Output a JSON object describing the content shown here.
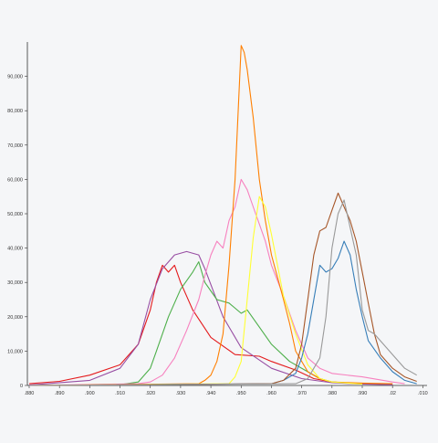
{
  "chart_data": {
    "type": "line",
    "title": "",
    "xlabel": "",
    "ylabel": "",
    "x_ticks": [
      ".880",
      ".890",
      ".900",
      ".910",
      ".920",
      ".930",
      ".940",
      ".950",
      ".960",
      ".970",
      ".980",
      ".990",
      ".02",
      ".010"
    ],
    "y_ticks": [
      "0",
      "10,000",
      "20,000",
      "30,000",
      "40,000",
      "50,000",
      "60,000",
      "70,000",
      "80,000",
      "90,000"
    ],
    "ylim": [
      0,
      100000
    ],
    "grid": false,
    "legend": "none",
    "series": [
      {
        "color": "#e41a1c",
        "points": [
          [
            0,
            500
          ],
          [
            5,
            1200
          ],
          [
            10,
            3000
          ],
          [
            15,
            6000
          ],
          [
            18,
            12000
          ],
          [
            20,
            22000
          ],
          [
            21,
            30000
          ],
          [
            22,
            35000
          ],
          [
            23,
            33000
          ],
          [
            24,
            35000
          ],
          [
            25,
            30000
          ],
          [
            27,
            22000
          ],
          [
            30,
            14000
          ],
          [
            34,
            9000
          ],
          [
            38,
            8500
          ],
          [
            40,
            7000
          ],
          [
            44,
            4500
          ],
          [
            47,
            2000
          ],
          [
            50,
            1000
          ],
          [
            55,
            500
          ],
          [
            60,
            300
          ]
        ]
      },
      {
        "color": "#984ea3",
        "points": [
          [
            0,
            100
          ],
          [
            10,
            1500
          ],
          [
            15,
            5000
          ],
          [
            18,
            12000
          ],
          [
            20,
            25000
          ],
          [
            22,
            34000
          ],
          [
            24,
            38000
          ],
          [
            26,
            39000
          ],
          [
            28,
            38000
          ],
          [
            29,
            34000
          ],
          [
            32,
            20000
          ],
          [
            35,
            11000
          ],
          [
            40,
            5000
          ],
          [
            45,
            2000
          ],
          [
            50,
            800
          ],
          [
            55,
            400
          ],
          [
            60,
            200
          ]
        ]
      },
      {
        "color": "#4daf4a",
        "points": [
          [
            0,
            0
          ],
          [
            15,
            200
          ],
          [
            18,
            1000
          ],
          [
            20,
            5000
          ],
          [
            21,
            10000
          ],
          [
            23,
            20000
          ],
          [
            25,
            28000
          ],
          [
            27,
            33000
          ],
          [
            28,
            36000
          ],
          [
            29,
            30000
          ],
          [
            31,
            25000
          ],
          [
            33,
            24000
          ],
          [
            35,
            21000
          ],
          [
            36,
            22000
          ],
          [
            38,
            17000
          ],
          [
            40,
            12000
          ],
          [
            43,
            7000
          ],
          [
            46,
            4000
          ],
          [
            48,
            2000
          ],
          [
            50,
            1000
          ],
          [
            55,
            500
          ]
        ]
      },
      {
        "color": "#f781bf",
        "points": [
          [
            0,
            0
          ],
          [
            18,
            500
          ],
          [
            20,
            1000
          ],
          [
            22,
            3000
          ],
          [
            24,
            8000
          ],
          [
            26,
            16000
          ],
          [
            28,
            25000
          ],
          [
            29,
            32000
          ],
          [
            30,
            38000
          ],
          [
            31,
            42000
          ],
          [
            32,
            40000
          ],
          [
            33,
            48000
          ],
          [
            34,
            52000
          ],
          [
            35,
            60000
          ],
          [
            36,
            57000
          ],
          [
            37,
            52000
          ],
          [
            38,
            47000
          ],
          [
            39,
            42000
          ],
          [
            40,
            35000
          ],
          [
            42,
            26000
          ],
          [
            44,
            16000
          ],
          [
            46,
            8000
          ],
          [
            48,
            5000
          ],
          [
            50,
            3500
          ],
          [
            55,
            2500
          ],
          [
            60,
            1000
          ],
          [
            62,
            500
          ]
        ]
      },
      {
        "color": "#ff7f00",
        "points": [
          [
            0,
            0
          ],
          [
            28,
            500
          ],
          [
            29,
            1500
          ],
          [
            30,
            3000
          ],
          [
            31,
            7000
          ],
          [
            32,
            15000
          ],
          [
            33,
            35000
          ],
          [
            34,
            60000
          ],
          [
            35,
            99000
          ],
          [
            35.5,
            97000
          ],
          [
            36,
            92000
          ],
          [
            37,
            78000
          ],
          [
            38,
            60000
          ],
          [
            39,
            48000
          ],
          [
            40,
            38000
          ],
          [
            42,
            25000
          ],
          [
            43,
            18000
          ],
          [
            44,
            10000
          ],
          [
            46,
            4000
          ],
          [
            48,
            2000
          ],
          [
            50,
            1000
          ],
          [
            55,
            700
          ],
          [
            60,
            500
          ]
        ]
      },
      {
        "color": "#ffff33",
        "points": [
          [
            0,
            0
          ],
          [
            33,
            500
          ],
          [
            34,
            2500
          ],
          [
            35,
            7000
          ],
          [
            36,
            25000
          ],
          [
            37,
            43000
          ],
          [
            38,
            55000
          ],
          [
            39,
            52000
          ],
          [
            40,
            44000
          ],
          [
            41,
            35000
          ],
          [
            42,
            26000
          ],
          [
            44,
            15000
          ],
          [
            46,
            6000
          ],
          [
            48,
            2000
          ],
          [
            50,
            1000
          ],
          [
            55,
            400
          ]
        ]
      },
      {
        "color": "#377eb8",
        "points": [
          [
            0,
            0
          ],
          [
            40,
            500
          ],
          [
            42,
            1500
          ],
          [
            44,
            3500
          ],
          [
            45,
            8000
          ],
          [
            46,
            15000
          ],
          [
            47,
            25000
          ],
          [
            48,
            35000
          ],
          [
            49,
            33000
          ],
          [
            50,
            34000
          ],
          [
            51,
            37000
          ],
          [
            52,
            42000
          ],
          [
            53,
            38000
          ],
          [
            54,
            28000
          ],
          [
            55,
            20000
          ],
          [
            56,
            13000
          ],
          [
            58,
            8000
          ],
          [
            60,
            4000
          ],
          [
            62,
            1500
          ],
          [
            64,
            500
          ]
        ]
      },
      {
        "color": "#a65628",
        "points": [
          [
            0,
            0
          ],
          [
            40,
            500
          ],
          [
            42,
            1500
          ],
          [
            44,
            5000
          ],
          [
            45,
            12000
          ],
          [
            46,
            25000
          ],
          [
            47,
            38000
          ],
          [
            48,
            45000
          ],
          [
            49,
            46000
          ],
          [
            50,
            51000
          ],
          [
            51,
            56000
          ],
          [
            52,
            52000
          ],
          [
            53,
            48000
          ],
          [
            54,
            42000
          ],
          [
            55,
            33000
          ],
          [
            56,
            24000
          ],
          [
            57,
            15000
          ],
          [
            58,
            9000
          ],
          [
            60,
            5000
          ],
          [
            62,
            2500
          ],
          [
            64,
            1200
          ]
        ]
      },
      {
        "color": "#999999",
        "points": [
          [
            0,
            0
          ],
          [
            44,
            500
          ],
          [
            46,
            2000
          ],
          [
            47,
            5000
          ],
          [
            48,
            8000
          ],
          [
            49,
            20000
          ],
          [
            50,
            40000
          ],
          [
            51,
            50000
          ],
          [
            52,
            54000
          ],
          [
            53,
            46000
          ],
          [
            54,
            38000
          ],
          [
            55,
            22000
          ],
          [
            56,
            16000
          ],
          [
            57,
            15000
          ],
          [
            58,
            13000
          ],
          [
            59,
            11000
          ],
          [
            60,
            9000
          ],
          [
            62,
            5000
          ],
          [
            64,
            3000
          ]
        ]
      }
    ]
  }
}
